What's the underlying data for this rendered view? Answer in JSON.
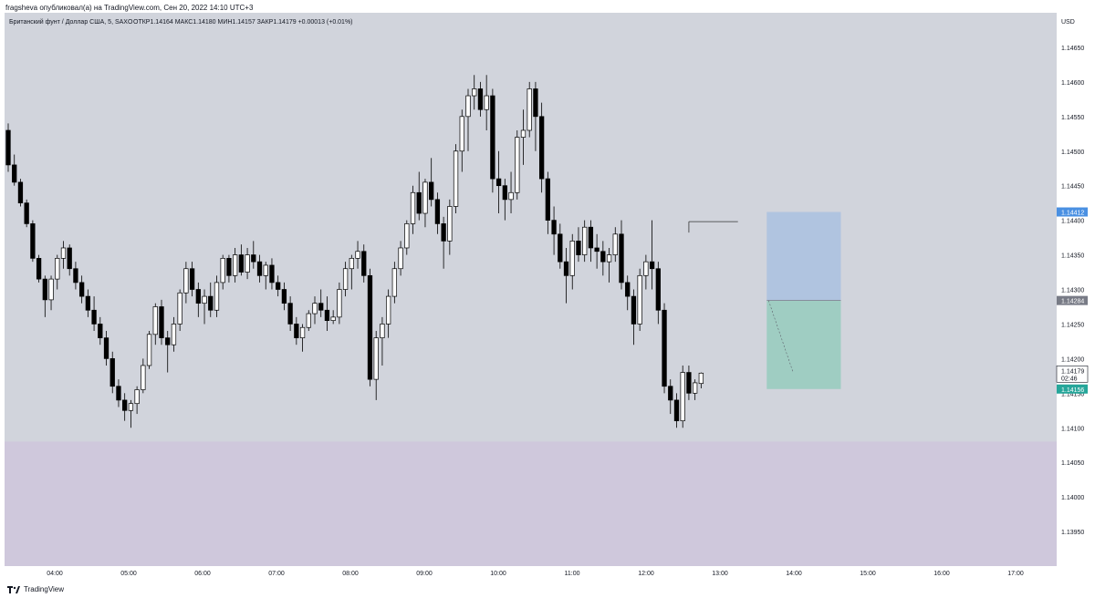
{
  "header": {
    "published_by": "fragsheva опубликовал(а) на TradingView.com, Сен 20, 2022 14:10 UTC+3"
  },
  "footer": {
    "brand": "TradingView"
  },
  "chart_data": {
    "type": "candlestick",
    "title": "Британский фунт / Доллар США, 5, SAXO",
    "ohlc_legend": "ОТКР1.14164  МАКС1.14180  МИН1.14157  ЗАКР1.14179  +0.00013 (+0.01%)",
    "currency": "USD",
    "ylim": [
      1.139,
      1.147
    ],
    "y_ticks": [
      "1.14650",
      "1.14600",
      "1.14550",
      "1.14500",
      "1.14450",
      "1.14400",
      "1.14350",
      "1.14300",
      "1.14250",
      "1.14200",
      "1.14150",
      "1.14100",
      "1.14050",
      "1.14000",
      "1.13950"
    ],
    "x_ticks": [
      "04:00",
      "05:00",
      "06:00",
      "07:00",
      "08:00",
      "09:00",
      "10:00",
      "11:00",
      "12:00",
      "13:00",
      "14:00",
      "15:00",
      "16:00",
      "17:00"
    ],
    "price_labels": {
      "take_profit": "1.14412",
      "entry": "1.14284",
      "last_price": "1.14179",
      "countdown": "02:46",
      "stop_loss": "1.14156"
    },
    "colors": {
      "background": "#d1d4dc",
      "zone": "#cfc8dc",
      "profit_zone": "#b0c4e0",
      "loss_zone": "#9fcdc2",
      "up_candle": "#ffffff",
      "down_candle": "#000000",
      "entry_badge": "#787b86",
      "tp_badge": "#4a90e2",
      "sl_badge": "#26a69a"
    },
    "zone": {
      "from": 1.1389,
      "to": 1.1408
    },
    "position": {
      "entry": 1.14284,
      "take_profit": 1.14412,
      "stop_loss": 1.14156,
      "start_index": 124,
      "end_index": 134
    },
    "resistance_line": {
      "price": 1.14398,
      "from_index": 111,
      "to_index": 119
    },
    "candles": [
      [
        1.1453,
        1.1454,
        1.1447,
        1.1448
      ],
      [
        1.1448,
        1.14495,
        1.1445,
        1.14455
      ],
      [
        1.14455,
        1.1446,
        1.1442,
        1.14425
      ],
      [
        1.14425,
        1.1443,
        1.1439,
        1.14395
      ],
      [
        1.14395,
        1.144,
        1.1434,
        1.14345
      ],
      [
        1.14345,
        1.1435,
        1.1431,
        1.14315
      ],
      [
        1.14315,
        1.1432,
        1.1426,
        1.14285
      ],
      [
        1.14285,
        1.1432,
        1.1427,
        1.14315
      ],
      [
        1.14315,
        1.1435,
        1.143,
        1.14345
      ],
      [
        1.14345,
        1.1437,
        1.1433,
        1.1436
      ],
      [
        1.1436,
        1.14365,
        1.1432,
        1.1433
      ],
      [
        1.1433,
        1.1434,
        1.143,
        1.1431
      ],
      [
        1.1431,
        1.1432,
        1.1428,
        1.1429
      ],
      [
        1.1429,
        1.143,
        1.1426,
        1.1427
      ],
      [
        1.1427,
        1.1429,
        1.1424,
        1.1425
      ],
      [
        1.1425,
        1.1426,
        1.1422,
        1.1423
      ],
      [
        1.1423,
        1.1424,
        1.1419,
        1.142
      ],
      [
        1.142,
        1.1421,
        1.1415,
        1.1416
      ],
      [
        1.1416,
        1.1417,
        1.1413,
        1.1414
      ],
      [
        1.1414,
        1.1415,
        1.1411,
        1.14125
      ],
      [
        1.14125,
        1.1414,
        1.141,
        1.14135
      ],
      [
        1.14135,
        1.1416,
        1.1412,
        1.14155
      ],
      [
        1.14155,
        1.142,
        1.1415,
        1.1419
      ],
      [
        1.1419,
        1.1424,
        1.14185,
        1.14235
      ],
      [
        1.14235,
        1.1428,
        1.1422,
        1.14275
      ],
      [
        1.14275,
        1.14285,
        1.1422,
        1.1423
      ],
      [
        1.1423,
        1.1424,
        1.1418,
        1.1422
      ],
      [
        1.1422,
        1.1426,
        1.1421,
        1.1425
      ],
      [
        1.1425,
        1.143,
        1.1424,
        1.14295
      ],
      [
        1.14295,
        1.1434,
        1.1428,
        1.1433
      ],
      [
        1.1433,
        1.1434,
        1.1429,
        1.143
      ],
      [
        1.143,
        1.1431,
        1.1426,
        1.1428
      ],
      [
        1.1428,
        1.143,
        1.1425,
        1.1429
      ],
      [
        1.1429,
        1.1431,
        1.1426,
        1.1427
      ],
      [
        1.1427,
        1.1432,
        1.1426,
        1.1431
      ],
      [
        1.1431,
        1.1435,
        1.143,
        1.14345
      ],
      [
        1.14345,
        1.1435,
        1.1431,
        1.1432
      ],
      [
        1.1432,
        1.1436,
        1.1431,
        1.1435
      ],
      [
        1.1435,
        1.14365,
        1.1432,
        1.14325
      ],
      [
        1.14325,
        1.1436,
        1.14315,
        1.1435
      ],
      [
        1.1435,
        1.1437,
        1.1433,
        1.1434
      ],
      [
        1.1434,
        1.1435,
        1.1431,
        1.1432
      ],
      [
        1.1432,
        1.1434,
        1.143,
        1.14335
      ],
      [
        1.14335,
        1.14345,
        1.143,
        1.1431
      ],
      [
        1.1431,
        1.1432,
        1.1429,
        1.143
      ],
      [
        1.143,
        1.1431,
        1.1427,
        1.1428
      ],
      [
        1.1428,
        1.1429,
        1.1424,
        1.1425
      ],
      [
        1.1425,
        1.1426,
        1.1422,
        1.1423
      ],
      [
        1.1423,
        1.1425,
        1.1421,
        1.14245
      ],
      [
        1.14245,
        1.1427,
        1.1424,
        1.14265
      ],
      [
        1.14265,
        1.1429,
        1.1425,
        1.1428
      ],
      [
        1.1428,
        1.143,
        1.1426,
        1.1427
      ],
      [
        1.1427,
        1.1429,
        1.1424,
        1.14255
      ],
      [
        1.14255,
        1.1427,
        1.1425,
        1.1426
      ],
      [
        1.1426,
        1.1431,
        1.1425,
        1.143
      ],
      [
        1.143,
        1.1434,
        1.1429,
        1.1433
      ],
      [
        1.1433,
        1.1435,
        1.143,
        1.14345
      ],
      [
        1.14345,
        1.1437,
        1.1433,
        1.14355
      ],
      [
        1.14355,
        1.14365,
        1.1431,
        1.1432
      ],
      [
        1.1432,
        1.1433,
        1.1416,
        1.1417
      ],
      [
        1.1417,
        1.1424,
        1.1414,
        1.1423
      ],
      [
        1.1423,
        1.1426,
        1.1419,
        1.1425
      ],
      [
        1.1425,
        1.143,
        1.1423,
        1.1429
      ],
      [
        1.1429,
        1.1434,
        1.1428,
        1.1433
      ],
      [
        1.1433,
        1.1437,
        1.1432,
        1.1436
      ],
      [
        1.1436,
        1.144,
        1.1435,
        1.14395
      ],
      [
        1.14395,
        1.1445,
        1.1438,
        1.1444
      ],
      [
        1.1444,
        1.1447,
        1.144,
        1.1441
      ],
      [
        1.1441,
        1.1446,
        1.1439,
        1.14455
      ],
      [
        1.14455,
        1.1449,
        1.1442,
        1.1443
      ],
      [
        1.1443,
        1.1444,
        1.1438,
        1.14395
      ],
      [
        1.14395,
        1.14405,
        1.1433,
        1.1437
      ],
      [
        1.1437,
        1.1443,
        1.1435,
        1.1442
      ],
      [
        1.1442,
        1.1451,
        1.1441,
        1.145
      ],
      [
        1.145,
        1.1456,
        1.1447,
        1.1455
      ],
      [
        1.1455,
        1.1459,
        1.145,
        1.1458
      ],
      [
        1.1458,
        1.1461,
        1.1456,
        1.1459
      ],
      [
        1.1459,
        1.146,
        1.1455,
        1.1456
      ],
      [
        1.1456,
        1.1461,
        1.1453,
        1.1458
      ],
      [
        1.1458,
        1.1459,
        1.1444,
        1.1446
      ],
      [
        1.1446,
        1.145,
        1.1441,
        1.1445
      ],
      [
        1.1445,
        1.1446,
        1.144,
        1.1443
      ],
      [
        1.1443,
        1.1447,
        1.1441,
        1.1444
      ],
      [
        1.1444,
        1.1453,
        1.1443,
        1.1452
      ],
      [
        1.1452,
        1.1456,
        1.1448,
        1.1453
      ],
      [
        1.1453,
        1.146,
        1.1452,
        1.1459
      ],
      [
        1.1459,
        1.146,
        1.145,
        1.1455
      ],
      [
        1.1455,
        1.1457,
        1.1444,
        1.1446
      ],
      [
        1.1446,
        1.1447,
        1.1438,
        1.144
      ],
      [
        1.144,
        1.1442,
        1.1435,
        1.1438
      ],
      [
        1.1438,
        1.14395,
        1.1433,
        1.1434
      ],
      [
        1.1434,
        1.1436,
        1.1428,
        1.1432
      ],
      [
        1.1432,
        1.1438,
        1.143,
        1.1437
      ],
      [
        1.1437,
        1.1439,
        1.1434,
        1.1435
      ],
      [
        1.1435,
        1.144,
        1.1434,
        1.1439
      ],
      [
        1.1439,
        1.144,
        1.1434,
        1.1436
      ],
      [
        1.1436,
        1.1438,
        1.1433,
        1.14355
      ],
      [
        1.14355,
        1.1437,
        1.1432,
        1.1434
      ],
      [
        1.1434,
        1.1436,
        1.1431,
        1.1435
      ],
      [
        1.1435,
        1.1439,
        1.1434,
        1.1438
      ],
      [
        1.1438,
        1.144,
        1.143,
        1.1431
      ],
      [
        1.1431,
        1.1432,
        1.1427,
        1.1429
      ],
      [
        1.1429,
        1.143,
        1.1422,
        1.1425
      ],
      [
        1.1425,
        1.1433,
        1.1424,
        1.1432
      ],
      [
        1.1432,
        1.1435,
        1.143,
        1.1434
      ],
      [
        1.1434,
        1.144,
        1.143,
        1.1433
      ],
      [
        1.1433,
        1.1434,
        1.1425,
        1.1427
      ],
      [
        1.1427,
        1.1428,
        1.1415,
        1.1416
      ],
      [
        1.1416,
        1.1417,
        1.1412,
        1.1414
      ],
      [
        1.1414,
        1.1415,
        1.141,
        1.1411
      ],
      [
        1.1411,
        1.1419,
        1.141,
        1.1418
      ],
      [
        1.1418,
        1.1419,
        1.1414,
        1.1415
      ],
      [
        1.1415,
        1.1417,
        1.1414,
        1.14165
      ],
      [
        1.14164,
        1.1418,
        1.14157,
        1.14179
      ]
    ]
  }
}
